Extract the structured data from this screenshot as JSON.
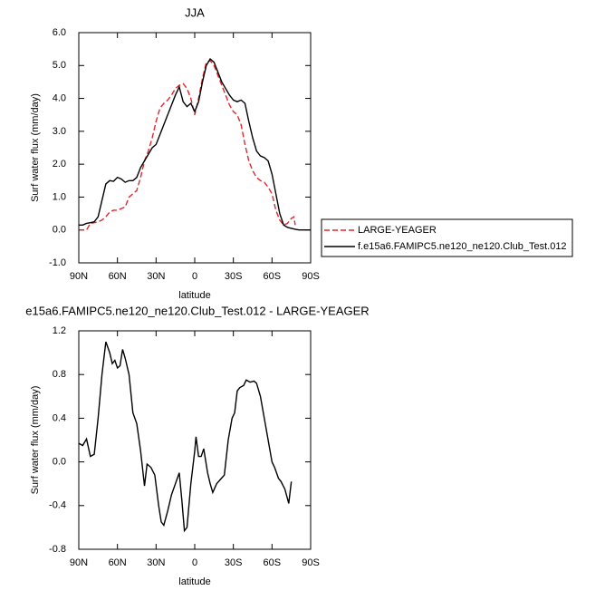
{
  "chart_data": [
    {
      "type": "line",
      "title": "JJA",
      "xlabel": "latitude",
      "ylabel": "Surf water flux (mm/day)",
      "xlim": [
        90,
        -90
      ],
      "xticks": [
        {
          "value": 90,
          "label": "90N"
        },
        {
          "value": 60,
          "label": "60N"
        },
        {
          "value": 30,
          "label": "30N"
        },
        0,
        {
          "value": -30,
          "label": "30S"
        },
        {
          "value": -60,
          "label": "60S"
        },
        {
          "value": -90,
          "label": "90S"
        }
      ],
      "ylim": [
        -1,
        6
      ],
      "yticks": [
        {
          "value": -1,
          "label": "-1.0"
        },
        {
          "value": 0,
          "label": "0.0"
        },
        {
          "value": 1,
          "label": "1.0"
        },
        {
          "value": 2,
          "label": "2.0"
        },
        {
          "value": 3,
          "label": "3.0"
        },
        {
          "value": 4,
          "label": "4.0"
        },
        {
          "value": 5,
          "label": "5.0"
        },
        {
          "value": 6,
          "label": "6.0"
        }
      ],
      "legend": "outside-right",
      "series": [
        {
          "name": "LARGE-YEAGER",
          "color": "#e3262b",
          "style": "dashed",
          "x": [
            90,
            87,
            84,
            81,
            78,
            75,
            72,
            69,
            66,
            63,
            60,
            57,
            54,
            51,
            48,
            45,
            42,
            39,
            36,
            33,
            30,
            27,
            24,
            21,
            18,
            15,
            12,
            9,
            6,
            3,
            0,
            -3,
            -6,
            -9,
            -12,
            -15,
            -18,
            -21,
            -24,
            -27,
            -30,
            -33,
            -36,
            -39,
            -42,
            -45,
            -48,
            -51,
            -54,
            -57,
            -60,
            -63,
            -66,
            -69,
            -72,
            -75,
            -77,
            -78
          ],
          "values": [
            0.0,
            0.0,
            0.0,
            0.2,
            0.22,
            0.25,
            0.3,
            0.4,
            0.55,
            0.6,
            0.6,
            0.65,
            0.7,
            1.0,
            1.1,
            1.2,
            1.6,
            2.1,
            2.4,
            2.8,
            3.3,
            3.7,
            3.85,
            3.95,
            4.1,
            4.3,
            4.4,
            4.45,
            4.3,
            4.0,
            3.5,
            4.0,
            4.6,
            5.1,
            5.15,
            5.0,
            4.7,
            4.4,
            4.1,
            3.8,
            3.6,
            3.5,
            3.2,
            2.6,
            2.1,
            1.8,
            1.6,
            1.5,
            1.45,
            1.3,
            1.1,
            0.6,
            0.3,
            0.15,
            0.2,
            0.35,
            0.4,
            0.15
          ]
        },
        {
          "name": "f.e15a6.FAMIPC5.ne120_ne120.Club_Test.012",
          "color": "#000000",
          "style": "solid",
          "x": [
            90,
            87,
            84,
            81,
            78,
            75,
            72,
            69,
            66,
            63,
            60,
            57,
            54,
            51,
            48,
            45,
            42,
            39,
            36,
            33,
            30,
            27,
            24,
            21,
            18,
            15,
            12,
            9,
            6,
            3,
            0,
            -3,
            -6,
            -9,
            -12,
            -15,
            -18,
            -21,
            -24,
            -27,
            -30,
            -33,
            -36,
            -39,
            -42,
            -45,
            -48,
            -51,
            -54,
            -57,
            -60,
            -63,
            -66,
            -69,
            -72,
            -75,
            -78,
            -81,
            -84,
            -87,
            -90
          ],
          "values": [
            0.15,
            0.15,
            0.2,
            0.22,
            0.25,
            0.4,
            0.9,
            1.4,
            1.5,
            1.48,
            1.6,
            1.55,
            1.45,
            1.5,
            1.5,
            1.6,
            1.9,
            2.1,
            2.3,
            2.5,
            2.6,
            2.9,
            3.2,
            3.5,
            3.8,
            4.1,
            4.35,
            3.9,
            3.75,
            3.85,
            3.6,
            3.9,
            4.5,
            5.0,
            5.2,
            5.1,
            4.8,
            4.5,
            4.3,
            4.1,
            3.95,
            3.9,
            3.95,
            3.85,
            3.3,
            2.8,
            2.4,
            2.25,
            2.2,
            2.1,
            1.7,
            1.1,
            0.5,
            0.15,
            0.08,
            0.05,
            0.02,
            0.0,
            0.0,
            0.0,
            0.0
          ]
        }
      ]
    },
    {
      "type": "line",
      "title": "e15a6.FAMIPC5.ne120_ne120.Club_Test.012 - LARGE-YEAGER",
      "xlabel": "latitude",
      "ylabel": "Surf water flux (mm/day)",
      "xlim": [
        90,
        -90
      ],
      "xticks": [
        {
          "value": 90,
          "label": "90N"
        },
        {
          "value": 60,
          "label": "60N"
        },
        {
          "value": 30,
          "label": "30N"
        },
        0,
        {
          "value": -30,
          "label": "30S"
        },
        {
          "value": -60,
          "label": "60S"
        },
        {
          "value": -90,
          "label": "90S"
        }
      ],
      "ylim": [
        -0.8,
        1.2
      ],
      "yticks": [
        -0.8,
        -0.4,
        {
          "value": 0,
          "label": "0.0"
        },
        0.4,
        0.8,
        1.2
      ],
      "series": [
        {
          "color": "#000000",
          "style": "solid",
          "x": [
            90,
            87,
            84,
            81,
            78,
            75,
            72,
            69,
            66,
            64,
            62,
            60,
            58,
            56,
            54,
            51,
            48,
            45,
            42,
            39,
            37,
            34,
            31,
            28,
            26,
            24,
            21,
            18,
            15,
            12,
            10,
            8,
            6,
            3,
            0,
            -1,
            -3,
            -5,
            -7,
            -10,
            -12,
            -14,
            -17,
            -20,
            -23,
            -26,
            -29,
            -31,
            -33,
            -35,
            -38,
            -40,
            -43,
            -46,
            -48,
            -51,
            -54,
            -57,
            -60,
            -62,
            -65,
            -67,
            -70,
            -73,
            -75
          ],
          "values": [
            0.17,
            0.15,
            0.21,
            0.05,
            0.07,
            0.4,
            0.8,
            1.1,
            1.0,
            0.9,
            0.93,
            0.86,
            0.88,
            1.03,
            0.95,
            0.8,
            0.45,
            0.35,
            0.1,
            -0.22,
            -0.02,
            -0.05,
            -0.12,
            -0.4,
            -0.55,
            -0.58,
            -0.45,
            -0.3,
            -0.2,
            -0.1,
            -0.35,
            -0.63,
            -0.6,
            -0.2,
            0.1,
            0.23,
            0.05,
            0.05,
            0.12,
            -0.1,
            -0.2,
            -0.28,
            -0.2,
            -0.16,
            -0.12,
            0.2,
            0.4,
            0.45,
            0.65,
            0.68,
            0.7,
            0.75,
            0.73,
            0.74,
            0.72,
            0.6,
            0.4,
            0.2,
            0.0,
            -0.05,
            -0.15,
            -0.18,
            -0.25,
            -0.38,
            -0.18
          ]
        }
      ]
    }
  ]
}
